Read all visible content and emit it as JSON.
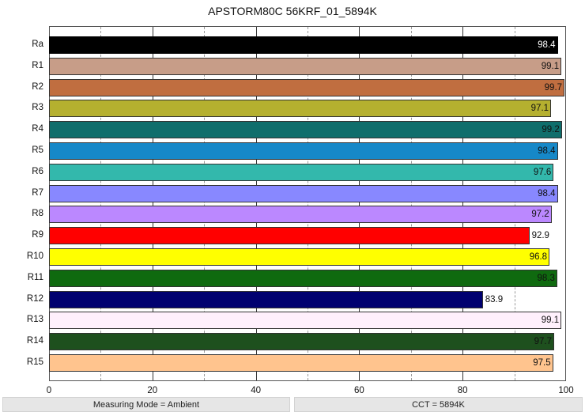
{
  "title": "APSTORM80C 56KRF_01_5894K",
  "status_bar": {
    "left": "Measuring Mode = Ambient",
    "right": "CCT = 5894K"
  },
  "chart_data": {
    "type": "bar",
    "orientation": "horizontal",
    "title": "APSTORM80C 56KRF_01_5894K",
    "xlabel": "",
    "ylabel": "",
    "xlim": [
      0,
      100
    ],
    "x_ticks": [
      "0",
      "20",
      "40",
      "60",
      "80",
      "100"
    ],
    "grid": {
      "major_every": 20,
      "minor_every": 10,
      "minor_style": "dashed"
    },
    "categories": [
      "Ra",
      "R1",
      "R2",
      "R3",
      "R4",
      "R5",
      "R6",
      "R7",
      "R8",
      "R9",
      "R10",
      "R11",
      "R12",
      "R13",
      "R14",
      "R15"
    ],
    "values": [
      98.4,
      99.1,
      99.7,
      97.1,
      99.2,
      98.4,
      97.6,
      98.4,
      97.2,
      92.9,
      96.8,
      98.3,
      83.9,
      99.1,
      97.7,
      97.5
    ],
    "value_labels": [
      "98.4",
      "99.1",
      "99.7",
      "97.1",
      "99.2",
      "98.4",
      "97.6",
      "98.4",
      "97.2",
      "92.9",
      "96.8",
      "98.3",
      "83.9",
      "99.1",
      "97.7",
      "97.5"
    ],
    "colors": [
      "#000000",
      "#c79d88",
      "#c06e40",
      "#b5b02f",
      "#0f6e6c",
      "#1688c8",
      "#33b8ac",
      "#8888ff",
      "#bb88ff",
      "#ff0000",
      "#ffff00",
      "#0f6a0f",
      "#000070",
      "#fff0fc",
      "#1e501e",
      "#ffc48e"
    ],
    "label_colors": [
      "#ffffff",
      "#111111",
      "#111111",
      "#111111",
      "#111111",
      "#111111",
      "#111111",
      "#111111",
      "#111111",
      "#111111",
      "#111111",
      "#111111",
      "#111111",
      "#111111",
      "#111111",
      "#111111"
    ],
    "legend": null
  }
}
